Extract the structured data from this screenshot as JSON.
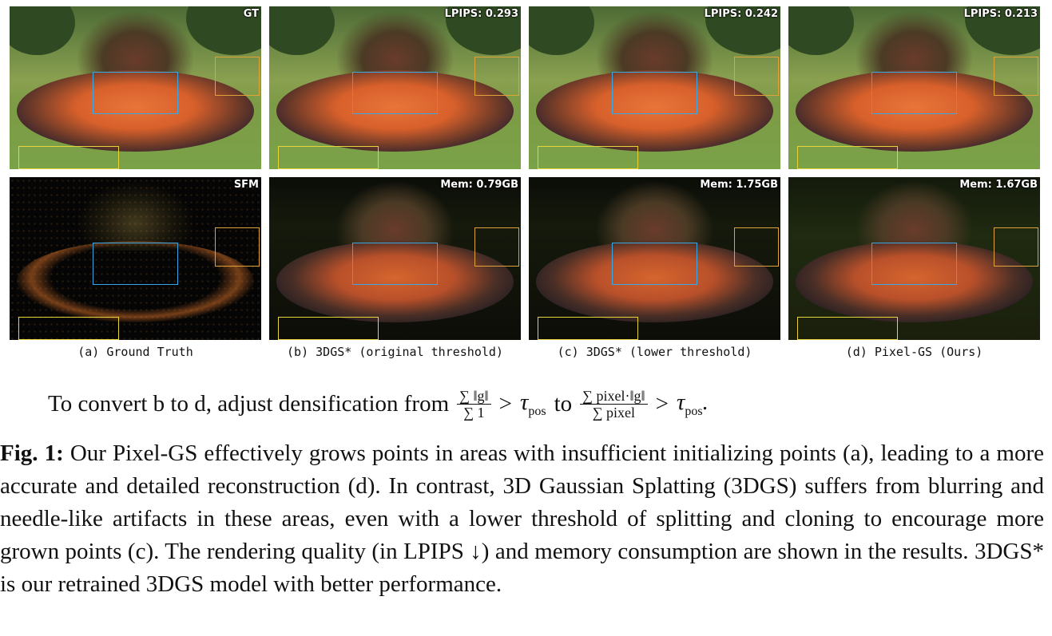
{
  "panels_top": [
    {
      "badge": "GT"
    },
    {
      "badge": "LPIPS: 0.293"
    },
    {
      "badge": "LPIPS: 0.242"
    },
    {
      "badge": "LPIPS: 0.213"
    }
  ],
  "panels_bottom": [
    {
      "badge": "SFM"
    },
    {
      "badge": "Mem: 0.79GB"
    },
    {
      "badge": "Mem: 1.75GB"
    },
    {
      "badge": "Mem: 1.67GB"
    }
  ],
  "subcaptions": [
    "(a) Ground Truth",
    "(b) 3DGS* (original threshold)",
    "(c) 3DGS* (lower threshold)",
    "(d) Pixel-GS (Ours)"
  ],
  "formula": {
    "prefix": "To convert b to d, adjust densification from",
    "frac1_num": "∑ ‖g‖",
    "frac1_den": "∑ 1",
    "gt": ">",
    "tau": "τ",
    "tau_sub": "pos",
    "to": "to",
    "frac2_num": "∑ pixel·‖g‖",
    "frac2_den": "∑ pixel",
    "suffix": "."
  },
  "caption": {
    "label": "Fig. 1:",
    "text": "Our Pixel-GS effectively grows points in areas with insufficient initializing points (a), leading to a more accurate and detailed reconstruction (d). In contrast, 3D Gaussian Splatting (3DGS) suffers from blurring and needle-like artifacts in these areas, even with a lower threshold of splitting and cloning to encourage more grown points (c). The rendering quality (in LPIPS ↓) and memory consumption are shown in the results. 3DGS* is our retrained 3DGS model with better performance."
  },
  "colors": {
    "box_blue": "#3aa7e6",
    "box_orange": "#e0a33a",
    "box_yellow": "#e6d43a"
  }
}
